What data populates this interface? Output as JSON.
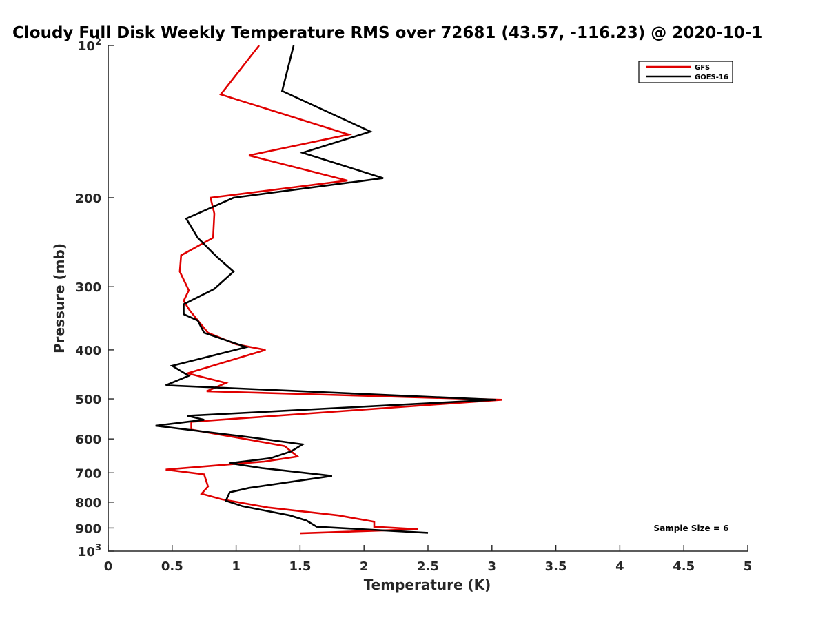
{
  "chart_data": {
    "type": "line",
    "title": "Cloudy Full Disk Weekly Temperature RMS over 72681 (43.57, -116.23) @ 2020-10-1",
    "xlabel": "Temperature (K)",
    "ylabel": "Pressure (mb)",
    "xlim": [
      0,
      5
    ],
    "ylim": [
      100,
      1000
    ],
    "y_scale": "log",
    "y_reversed": true,
    "x_ticks": [
      0,
      0.5,
      1,
      1.5,
      2,
      2.5,
      3,
      3.5,
      4,
      4.5,
      5
    ],
    "x_tick_labels": [
      "0",
      "0.5",
      "1",
      "1.5",
      "2",
      "2.5",
      "3",
      "3.5",
      "4",
      "4.5",
      "5"
    ],
    "y_ticks": [
      200,
      300,
      400,
      500,
      600,
      700,
      800,
      900
    ],
    "y_tick_labels": [
      "200",
      "300",
      "400",
      "500",
      "600",
      "700",
      "800",
      "900"
    ],
    "y_end_labels": [
      {
        "base": "10",
        "exp": "2",
        "value": 100
      },
      {
        "base": "10",
        "exp": "3",
        "value": 1000
      }
    ],
    "legend_position": "top-right",
    "annotation": "Sample Size = 6",
    "series": [
      {
        "name": "GFS",
        "color": "#e00000",
        "points": [
          [
            1.18,
            100
          ],
          [
            0.88,
            125
          ],
          [
            1.88,
            150
          ],
          [
            1.1,
            165
          ],
          [
            1.87,
            185
          ],
          [
            0.8,
            200
          ],
          [
            0.83,
            215
          ],
          [
            0.82,
            240
          ],
          [
            0.57,
            260
          ],
          [
            0.56,
            280
          ],
          [
            0.63,
            305
          ],
          [
            0.59,
            320
          ],
          [
            0.64,
            335
          ],
          [
            0.78,
            370
          ],
          [
            1.0,
            390
          ],
          [
            1.23,
            400
          ],
          [
            0.62,
            445
          ],
          [
            0.92,
            465
          ],
          [
            0.77,
            483
          ],
          [
            3.08,
            502
          ],
          [
            0.65,
            555
          ],
          [
            0.65,
            575
          ],
          [
            1.15,
            605
          ],
          [
            1.38,
            620
          ],
          [
            1.48,
            650
          ],
          [
            1.22,
            665
          ],
          [
            0.45,
            690
          ],
          [
            0.75,
            705
          ],
          [
            0.78,
            745
          ],
          [
            0.73,
            770
          ],
          [
            0.89,
            790
          ],
          [
            1.25,
            820
          ],
          [
            1.8,
            850
          ],
          [
            2.08,
            875
          ],
          [
            2.08,
            895
          ],
          [
            2.42,
            905
          ],
          [
            1.5,
            922
          ]
        ]
      },
      {
        "name": "GOES-16",
        "color": "#000000",
        "points": [
          [
            1.45,
            100
          ],
          [
            1.36,
            123
          ],
          [
            2.05,
            148
          ],
          [
            1.52,
            163
          ],
          [
            2.15,
            183
          ],
          [
            0.98,
            200
          ],
          [
            0.61,
            220
          ],
          [
            0.7,
            240
          ],
          [
            0.85,
            262
          ],
          [
            0.98,
            280
          ],
          [
            0.83,
            303
          ],
          [
            0.59,
            325
          ],
          [
            0.59,
            340
          ],
          [
            0.7,
            350
          ],
          [
            0.75,
            370
          ],
          [
            1.08,
            395
          ],
          [
            0.5,
            430
          ],
          [
            0.63,
            450
          ],
          [
            0.45,
            470
          ],
          [
            3.03,
            502
          ],
          [
            0.62,
            540
          ],
          [
            0.75,
            550
          ],
          [
            0.37,
            565
          ],
          [
            1.1,
            595
          ],
          [
            1.52,
            615
          ],
          [
            1.43,
            635
          ],
          [
            1.27,
            655
          ],
          [
            0.95,
            670
          ],
          [
            1.2,
            685
          ],
          [
            1.75,
            710
          ],
          [
            1.1,
            750
          ],
          [
            0.95,
            765
          ],
          [
            0.92,
            795
          ],
          [
            1.05,
            815
          ],
          [
            1.42,
            850
          ],
          [
            1.55,
            870
          ],
          [
            1.63,
            895
          ],
          [
            2.5,
            920
          ]
        ]
      }
    ]
  }
}
